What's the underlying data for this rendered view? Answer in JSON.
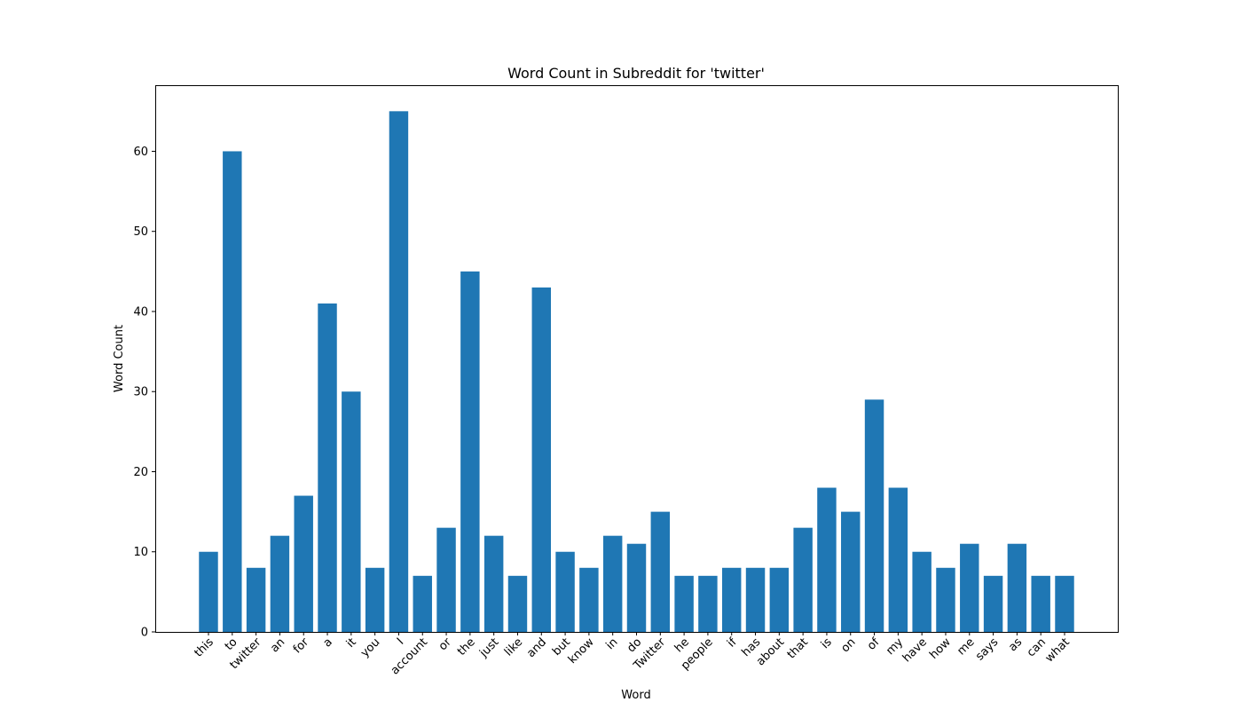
{
  "chart_data": {
    "type": "bar",
    "title": "Word Count in Subreddit for 'twitter'",
    "xlabel": "Word",
    "ylabel": "Word Count",
    "ylim": [
      0,
      68.25
    ],
    "yticks": [
      0,
      10,
      20,
      30,
      40,
      50,
      60
    ],
    "bar_color": "#1f77b4",
    "grid": false,
    "legend": "none",
    "categories": [
      "this",
      "to",
      "twitter",
      "an",
      "for",
      "a",
      "it",
      "you",
      "I",
      "account",
      "or",
      "the",
      "just",
      "like",
      "and",
      "but",
      "know",
      "in",
      "do",
      "Twitter",
      "he",
      "people",
      "if",
      "has",
      "about",
      "that",
      "is",
      "on",
      "of",
      "my",
      "have",
      "how",
      "me",
      "says",
      "as",
      "can",
      "what"
    ],
    "values": [
      10,
      60,
      8,
      12,
      17,
      41,
      30,
      8,
      65,
      7,
      13,
      45,
      12,
      7,
      43,
      10,
      8,
      12,
      11,
      15,
      7,
      7,
      8,
      8,
      8,
      13,
      18,
      15,
      29,
      18,
      10,
      8,
      11,
      7,
      11,
      7,
      7
    ]
  }
}
